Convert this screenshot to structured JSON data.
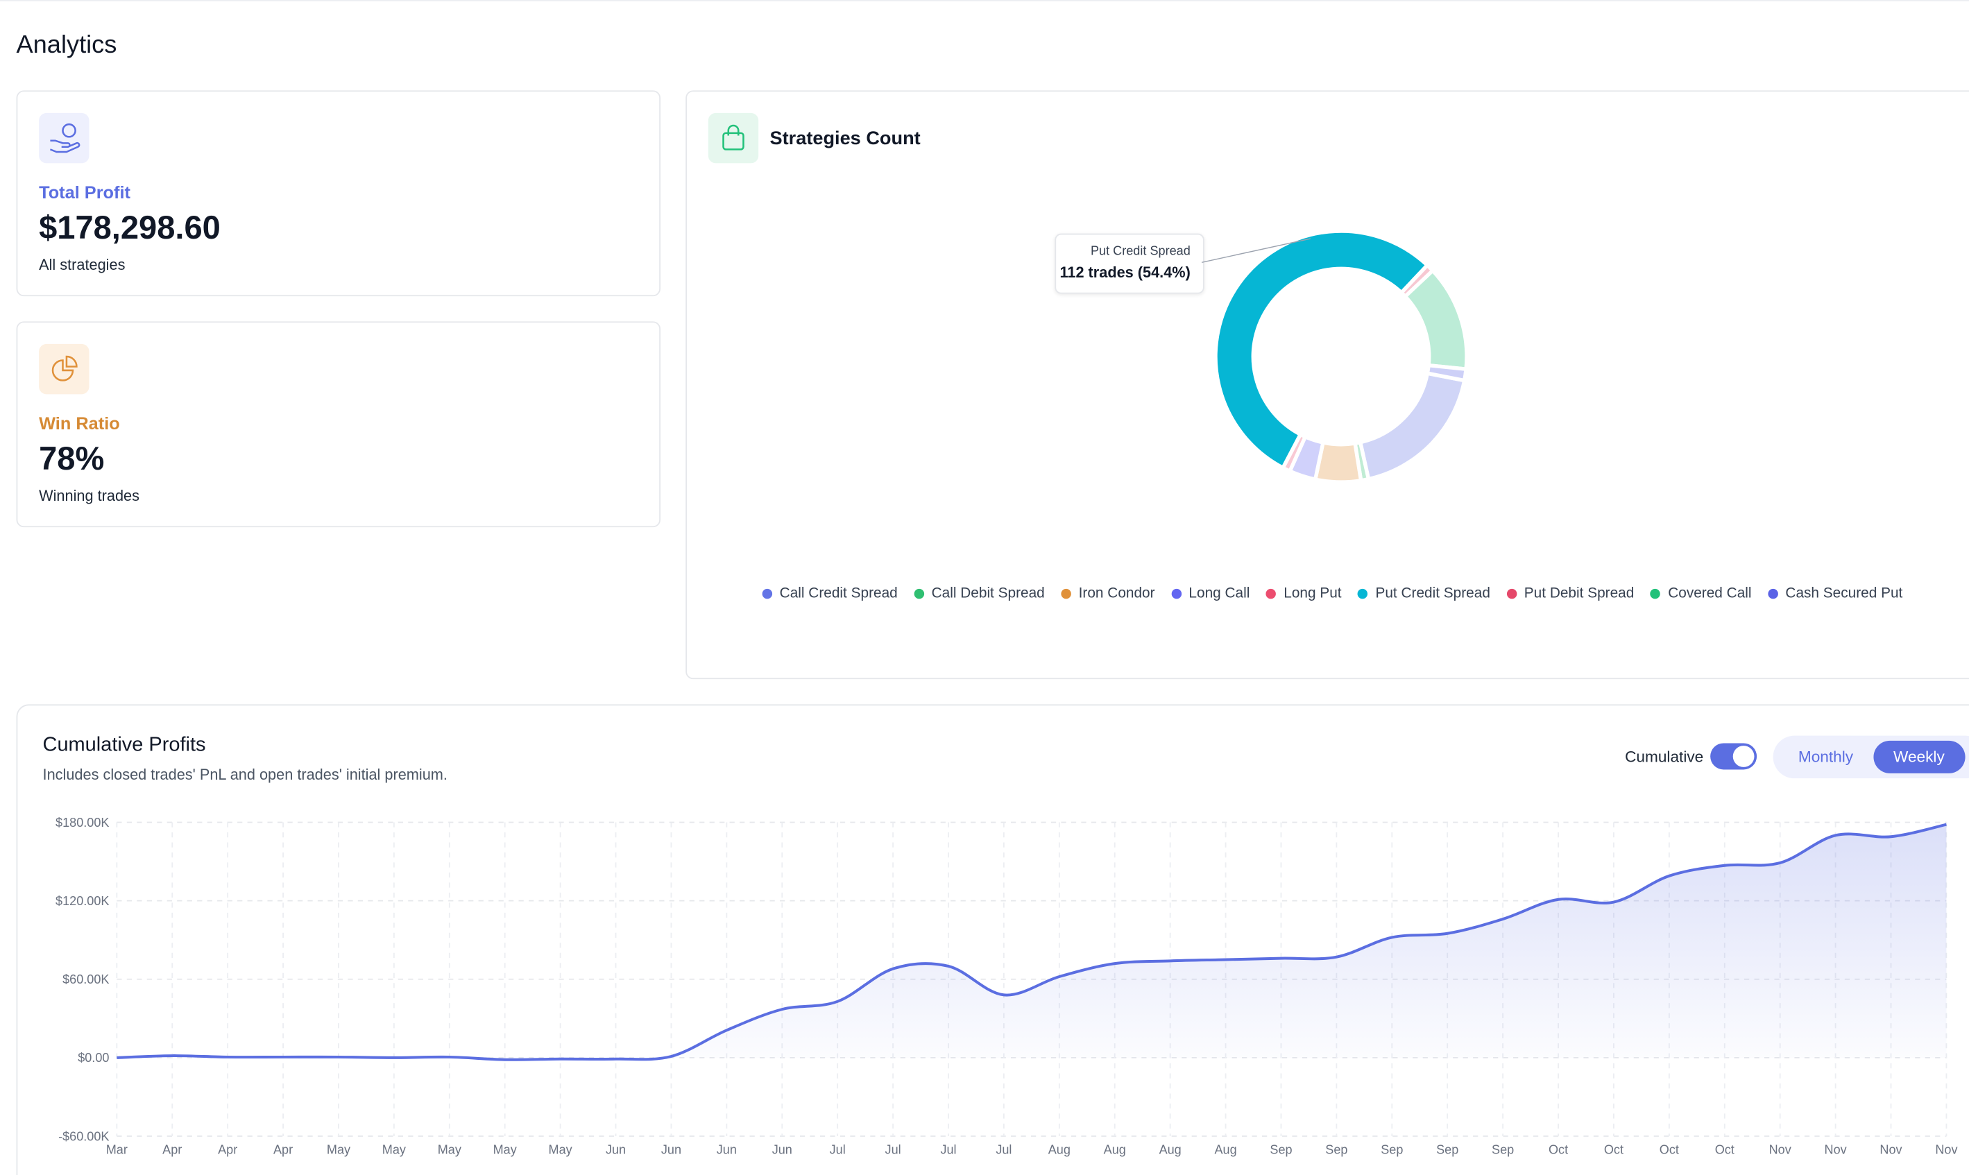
{
  "header": {
    "title": "Analytics"
  },
  "cards": [
    {
      "label": "Total Profit",
      "value": "$178,298.60",
      "caption": "All strategies"
    },
    {
      "label": "Win Ratio",
      "value": "78%",
      "caption": "Winning trades"
    }
  ],
  "strategies_panel": {
    "title": "Strategies Count",
    "tooltip": {
      "title": "Put Credit Spread",
      "text": "112 trades (54.4%)"
    }
  },
  "profits_panel": {
    "title": "Cumulative Profits",
    "subtitle": "Includes closed trades' PnL and open trades' initial premium.",
    "toggle": {
      "label": "Cumulative",
      "on": true
    },
    "tabs": [
      "Monthly",
      "Weekly"
    ],
    "active_tab": 1
  },
  "chart_data": [
    {
      "type": "pie",
      "donut": true,
      "categories": [
        "Call Credit Spread",
        "Call Debit Spread",
        "Iron Condor",
        "Long Call",
        "Long Put",
        "Put Credit Spread",
        "Put Debit Spread",
        "Covered Call",
        "Cash Secured Put"
      ],
      "values": [
        38,
        2,
        12,
        7,
        2,
        112,
        2,
        28,
        3
      ],
      "colors": [
        "#6374e6",
        "#2fbf71",
        "#e0913a",
        "#6366f1",
        "#ec4d6f",
        "#06b6d4",
        "#e5486a",
        "#22c17a",
        "#5a62e6"
      ]
    },
    {
      "type": "line",
      "area": true,
      "grid": true,
      "color": "#5b6ee1",
      "x": [
        "Mar",
        "Apr",
        "Apr",
        "Apr",
        "May",
        "May",
        "May",
        "May",
        "May",
        "Jun",
        "Jun",
        "Jun",
        "Jun",
        "Jul",
        "Jul",
        "Jul",
        "Jul",
        "Aug",
        "Aug",
        "Aug",
        "Aug",
        "Sep",
        "Sep",
        "Sep",
        "Sep",
        "Sep",
        "Oct",
        "Oct",
        "Oct",
        "Oct",
        "Nov",
        "Nov",
        "Nov",
        "Nov"
      ],
      "values": [
        0,
        1500,
        500,
        500,
        500,
        0,
        500,
        -1500,
        -1000,
        -1000,
        1000,
        21000,
        37000,
        43000,
        68000,
        70000,
        48000,
        62000,
        72000,
        74000,
        75000,
        76000,
        77000,
        92000,
        95000,
        106000,
        121000,
        119000,
        139000,
        147000,
        149000,
        170000,
        169000,
        178298.6
      ],
      "ylim": [
        -60000,
        180000
      ],
      "yticks": [
        {
          "value": -60000,
          "label": "-$60.00K"
        },
        {
          "value": 0,
          "label": "$0.00"
        },
        {
          "value": 60000,
          "label": "$60.00K"
        },
        {
          "value": 120000,
          "label": "$120.00K"
        },
        {
          "value": 180000,
          "label": "$180.00K"
        }
      ]
    }
  ]
}
